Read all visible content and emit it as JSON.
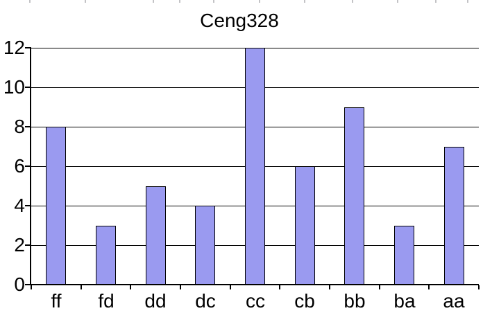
{
  "title": "Ceng328",
  "chart_data": {
    "type": "bar",
    "title": "Ceng328",
    "categories": [
      "ff",
      "fd",
      "dd",
      "dc",
      "cc",
      "cb",
      "bb",
      "ba",
      "aa"
    ],
    "values": [
      8,
      3,
      5,
      4,
      12,
      6,
      9,
      3,
      7
    ],
    "xlabel": "",
    "ylabel": "",
    "ylim": [
      0,
      12
    ],
    "yticks": [
      0,
      2,
      4,
      6,
      8,
      10,
      12
    ],
    "ytick_labels": [
      "0",
      "2",
      "4",
      "6",
      "8",
      "10",
      "12"
    ],
    "grid": true,
    "legend": "none",
    "bar_color": "#9a9af0",
    "bar_border_color": "#000000",
    "axis_color": "#000000",
    "grid_color": "#000000",
    "text_color": "#000000",
    "background_color": "#ffffff"
  },
  "artifacts": {
    "top_edge_tick_xs": [
      42,
      122,
      220,
      258,
      307,
      373,
      438,
      507,
      572,
      627,
      673
    ]
  }
}
